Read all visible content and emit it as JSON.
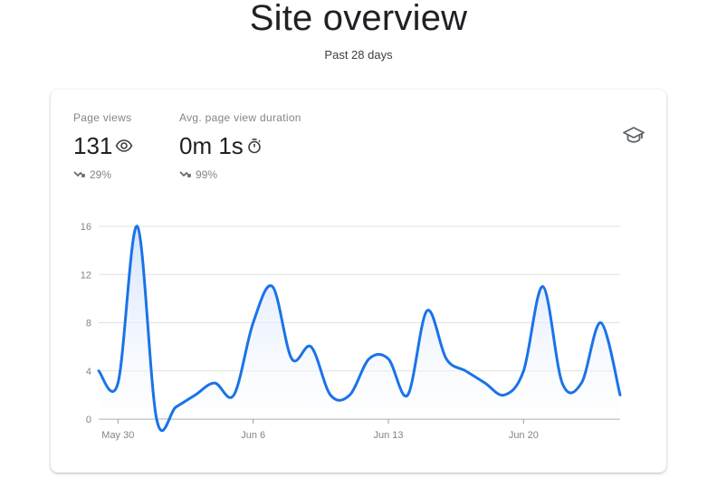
{
  "page": {
    "title": "Site overview",
    "subtitle": "Past 28 days"
  },
  "metrics": [
    {
      "label": "Page views",
      "value": "131",
      "icon": "eye-icon",
      "trend": "29%",
      "trend_icon": "trending-down-icon"
    },
    {
      "label": "Avg. page view duration",
      "value": "0m 1s",
      "icon": "stopwatch-icon",
      "trend": "99%",
      "trend_icon": "trending-down-icon"
    }
  ],
  "card_icon": "school-cap-icon",
  "colors": {
    "line": "#1a73e8",
    "area_top": "#cfe0fb",
    "grid": "#e0e0e0",
    "axis": "#9aa0a6"
  },
  "chart_data": {
    "type": "area",
    "x": [
      "May 29",
      "May 30",
      "May 31",
      "Jun 1",
      "Jun 2",
      "Jun 3",
      "Jun 4",
      "Jun 5",
      "Jun 6",
      "Jun 7",
      "Jun 8",
      "Jun 9",
      "Jun 10",
      "Jun 11",
      "Jun 12",
      "Jun 13",
      "Jun 14",
      "Jun 15",
      "Jun 16",
      "Jun 17",
      "Jun 18",
      "Jun 19",
      "Jun 20",
      "Jun 21",
      "Jun 22",
      "Jun 23",
      "Jun 24",
      "Jun 25"
    ],
    "values": [
      4,
      3,
      16,
      0,
      1,
      2,
      3,
      2,
      8,
      11,
      5,
      6,
      2,
      2,
      5,
      5,
      2,
      9,
      5,
      4,
      3,
      2,
      4,
      11,
      3,
      3,
      8,
      2
    ],
    "xticks": [
      "May 30",
      "Jun 6",
      "Jun 13",
      "Jun 20"
    ],
    "yticks": [
      0,
      4,
      8,
      12,
      16
    ],
    "ylim": [
      0,
      16
    ],
    "grid": true,
    "title": "",
    "xlabel": "",
    "ylabel": ""
  }
}
